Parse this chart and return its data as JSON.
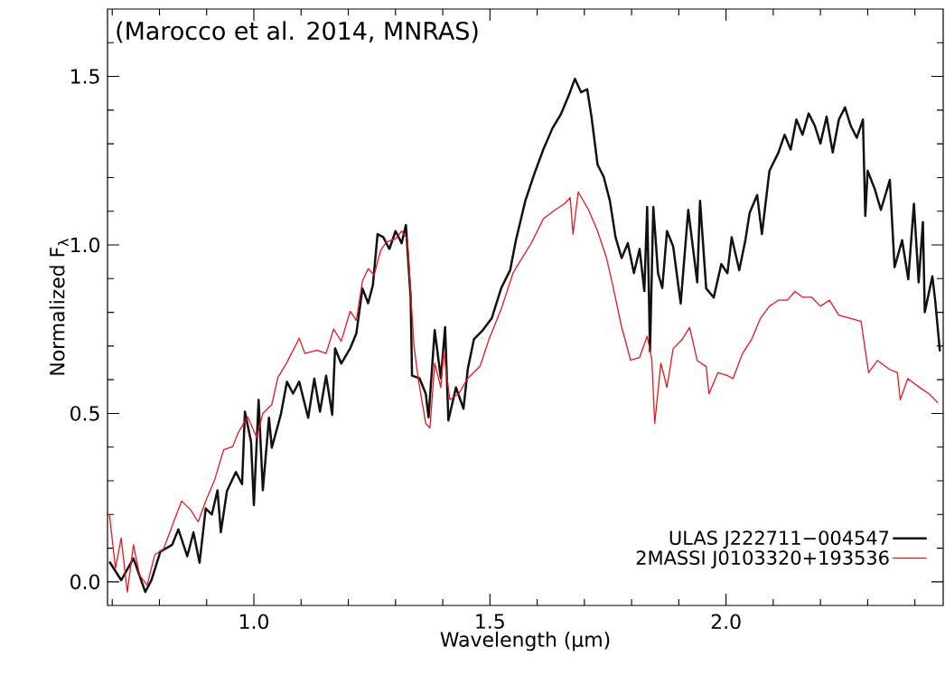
{
  "chart_data": {
    "type": "line",
    "xlabel": "Wavelength (µm)",
    "ylabel": "Normalized F$_{λ}$",
    "annotations": [
      "(Marocco et al. 2014, MNRAS)"
    ],
    "xlim": [
      0.69,
      2.46
    ],
    "ylim": [
      -0.07,
      1.7
    ],
    "xticks": [
      {
        "value": 0.7,
        "label": null
      },
      {
        "value": 0.8,
        "label": null
      },
      {
        "value": 0.9,
        "label": null
      },
      {
        "value": 1.0,
        "label": "1.0"
      },
      {
        "value": 1.1,
        "label": null
      },
      {
        "value": 1.2,
        "label": null
      },
      {
        "value": 1.3,
        "label": null
      },
      {
        "value": 1.4,
        "label": null
      },
      {
        "value": 1.5,
        "label": "1.5"
      },
      {
        "value": 1.6,
        "label": null
      },
      {
        "value": 1.7,
        "label": null
      },
      {
        "value": 1.8,
        "label": null
      },
      {
        "value": 1.9,
        "label": null
      },
      {
        "value": 2.0,
        "label": "2.0"
      },
      {
        "value": 2.1,
        "label": null
      },
      {
        "value": 2.2,
        "label": null
      },
      {
        "value": 2.3,
        "label": null
      },
      {
        "value": 2.4,
        "label": null
      }
    ],
    "yticks": [
      {
        "value": 0.0,
        "label": "0.0"
      },
      {
        "value": 0.1,
        "label": null
      },
      {
        "value": 0.2,
        "label": null
      },
      {
        "value": 0.3,
        "label": null
      },
      {
        "value": 0.4,
        "label": null
      },
      {
        "value": 0.5,
        "label": "0.5"
      },
      {
        "value": 0.6,
        "label": null
      },
      {
        "value": 0.7,
        "label": null
      },
      {
        "value": 0.8,
        "label": null
      },
      {
        "value": 0.9,
        "label": null
      },
      {
        "value": 1.0,
        "label": "1.0"
      },
      {
        "value": 1.1,
        "label": null
      },
      {
        "value": 1.2,
        "label": null
      },
      {
        "value": 1.3,
        "label": null
      },
      {
        "value": 1.4,
        "label": null
      },
      {
        "value": 1.5,
        "label": "1.5"
      },
      {
        "value": 1.6,
        "label": null
      }
    ],
    "legend": "bottom right",
    "marker": "none",
    "line_style": "solid",
    "series": [
      {
        "name": "ULAS J222711−004547",
        "color": "#111111",
        "x": [
          0.694,
          0.719,
          0.745,
          0.77,
          0.783,
          0.802,
          0.827,
          0.84,
          0.859,
          0.872,
          0.885,
          0.898,
          0.911,
          0.923,
          0.93,
          0.943,
          0.962,
          0.975,
          0.981,
          0.994,
          1.0,
          1.01,
          1.019,
          1.032,
          1.038,
          1.057,
          1.07,
          1.083,
          1.096,
          1.115,
          1.128,
          1.14,
          1.153,
          1.166,
          1.172,
          1.185,
          1.204,
          1.217,
          1.23,
          1.242,
          1.252,
          1.262,
          1.274,
          1.287,
          1.3,
          1.313,
          1.322,
          1.332,
          1.335,
          1.351,
          1.364,
          1.37,
          1.383,
          1.396,
          1.405,
          1.412,
          1.428,
          1.444,
          1.453,
          1.466,
          1.485,
          1.504,
          1.524,
          1.543,
          1.555,
          1.575,
          1.594,
          1.613,
          1.632,
          1.651,
          1.667,
          1.68,
          1.693,
          1.706,
          1.715,
          1.728,
          1.741,
          1.754,
          1.766,
          1.779,
          1.792,
          1.805,
          1.817,
          1.827,
          1.833,
          1.839,
          1.846,
          1.856,
          1.865,
          1.875,
          1.888,
          1.904,
          1.92,
          1.939,
          1.945,
          1.958,
          1.974,
          1.99,
          2.003,
          2.012,
          2.028,
          2.041,
          2.05,
          2.066,
          2.076,
          2.092,
          2.111,
          2.124,
          2.137,
          2.149,
          2.162,
          2.175,
          2.188,
          2.2,
          2.213,
          2.226,
          2.239,
          2.252,
          2.264,
          2.277,
          2.29,
          2.295,
          2.3,
          2.315,
          2.328,
          2.347,
          2.357,
          2.373,
          2.386,
          2.398,
          2.408,
          2.417,
          2.421,
          2.437,
          2.443,
          2.453
        ],
        "values": [
          0.06,
          0.005,
          0.07,
          -0.03,
          0.005,
          0.09,
          0.11,
          0.156,
          0.076,
          0.147,
          0.057,
          0.218,
          0.2,
          0.272,
          0.147,
          0.27,
          0.326,
          0.29,
          0.505,
          0.416,
          0.228,
          0.54,
          0.272,
          0.487,
          0.398,
          0.496,
          0.594,
          0.559,
          0.594,
          0.487,
          0.603,
          0.505,
          0.612,
          0.496,
          0.693,
          0.648,
          0.693,
          0.737,
          0.871,
          0.827,
          0.88,
          1.032,
          1.023,
          0.988,
          1.041,
          1.005,
          1.059,
          0.845,
          0.612,
          0.604,
          0.559,
          0.488,
          0.747,
          0.604,
          0.756,
          0.479,
          0.577,
          0.514,
          0.631,
          0.72,
          0.747,
          0.783,
          0.872,
          0.926,
          1.014,
          1.131,
          1.211,
          1.283,
          1.345,
          1.39,
          1.444,
          1.493,
          1.453,
          1.462,
          1.381,
          1.238,
          1.202,
          1.131,
          1.023,
          0.961,
          1.005,
          0.916,
          0.988,
          0.863,
          1.113,
          0.684,
          1.113,
          0.916,
          0.872,
          1.041,
          0.996,
          0.826,
          1.104,
          0.889,
          1.131,
          0.871,
          0.844,
          0.943,
          0.916,
          1.023,
          0.925,
          1.014,
          1.095,
          1.148,
          1.032,
          1.22,
          1.274,
          1.327,
          1.283,
          1.372,
          1.327,
          1.39,
          1.354,
          1.301,
          1.381,
          1.274,
          1.372,
          1.408,
          1.354,
          1.318,
          1.372,
          1.086,
          1.22,
          1.166,
          1.104,
          1.193,
          0.934,
          1.014,
          0.898,
          1.122,
          0.889,
          1.068,
          0.8,
          0.907,
          0.836,
          0.684
        ]
      },
      {
        "name": "2MASSI J0103320+193536",
        "color": "#e8161b",
        "x": [
          0.694,
          0.707,
          0.719,
          0.732,
          0.745,
          0.758,
          0.774,
          0.79,
          0.809,
          0.828,
          0.847,
          0.866,
          0.882,
          0.898,
          0.917,
          0.936,
          0.955,
          0.968,
          0.987,
          1.006,
          1.019,
          1.038,
          1.051,
          1.07,
          1.096,
          1.108,
          1.134,
          1.153,
          1.169,
          1.185,
          1.204,
          1.217,
          1.23,
          1.242,
          1.255,
          1.268,
          1.281,
          1.3,
          1.313,
          1.325,
          1.339,
          1.348,
          1.364,
          1.373,
          1.383,
          1.396,
          1.402,
          1.415,
          1.434,
          1.453,
          1.479,
          1.498,
          1.524,
          1.549,
          1.568,
          1.588,
          1.613,
          1.638,
          1.658,
          1.67,
          1.676,
          1.687,
          1.709,
          1.728,
          1.747,
          1.76,
          1.779,
          1.798,
          1.817,
          1.833,
          1.843,
          1.849,
          1.862,
          1.875,
          1.888,
          1.907,
          1.923,
          1.939,
          1.958,
          1.964,
          1.983,
          2.003,
          2.015,
          2.034,
          2.054,
          2.073,
          2.092,
          2.111,
          2.13,
          2.146,
          2.162,
          2.181,
          2.2,
          2.219,
          2.239,
          2.264,
          2.286,
          2.302,
          2.321,
          2.347,
          2.363,
          2.369,
          2.385,
          2.411,
          2.43,
          2.449
        ],
        "values": [
          0.201,
          0.04,
          0.13,
          -0.03,
          0.11,
          0.02,
          -0.01,
          0.08,
          0.098,
          0.17,
          0.24,
          0.214,
          0.178,
          0.24,
          0.303,
          0.392,
          0.401,
          0.446,
          0.49,
          0.428,
          0.5,
          0.526,
          0.607,
          0.651,
          0.723,
          0.678,
          0.687,
          0.678,
          0.75,
          0.714,
          0.803,
          0.776,
          0.893,
          0.929,
          0.911,
          0.982,
          1.009,
          1.018,
          1.041,
          1.018,
          0.702,
          0.604,
          0.47,
          0.457,
          0.649,
          0.577,
          0.684,
          0.541,
          0.559,
          0.604,
          0.64,
          0.72,
          0.81,
          0.917,
          0.961,
          1.006,
          1.077,
          1.104,
          1.122,
          1.14,
          1.032,
          1.157,
          1.104,
          1.041,
          0.961,
          0.881,
          0.756,
          0.658,
          0.666,
          0.729,
          0.658,
          0.47,
          0.649,
          0.577,
          0.692,
          0.719,
          0.755,
          0.657,
          0.639,
          0.558,
          0.621,
          0.612,
          0.603,
          0.675,
          0.719,
          0.782,
          0.818,
          0.836,
          0.836,
          0.862,
          0.845,
          0.845,
          0.818,
          0.836,
          0.791,
          0.782,
          0.773,
          0.621,
          0.657,
          0.63,
          0.621,
          0.54,
          0.603,
          0.576,
          0.558,
          0.531
        ]
      }
    ]
  }
}
